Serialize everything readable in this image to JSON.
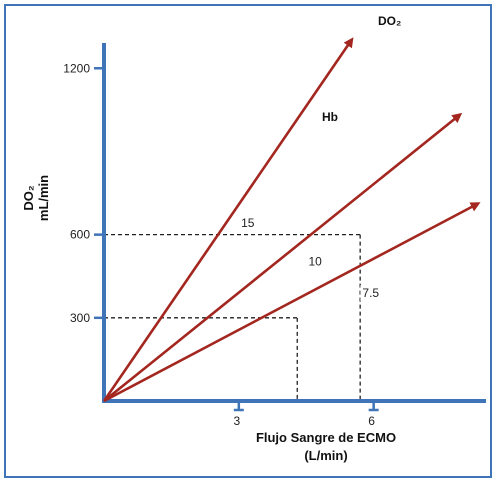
{
  "chart_data": {
    "type": "line",
    "title": "DO₂",
    "legend_title": "Hb",
    "xlabel_line1": "Flujo Sangre de ECMO",
    "xlabel_line2": "(L/min)",
    "ylabel_line1": "DO₂",
    "ylabel_line2": "mL/min",
    "xlim": [
      0,
      8.5
    ],
    "ylim": [
      0,
      1320
    ],
    "x_ticks": [
      3,
      6
    ],
    "x_tick_labels": [
      "3",
      "6"
    ],
    "y_ticks": [
      300,
      600,
      1200
    ],
    "y_tick_labels": [
      "300",
      "600",
      "1200"
    ],
    "series": [
      {
        "name": "15",
        "x": [
          0,
          5.5
        ],
        "y": [
          0,
          1300
        ],
        "label_at": [
          3.05,
          627
        ]
      },
      {
        "name": "10",
        "x": [
          0,
          7.9
        ],
        "y": [
          0,
          1030
        ],
        "label_at": [
          4.55,
          488
        ]
      },
      {
        "name": "7.5",
        "x": [
          0,
          8.3
        ],
        "y": [
          0,
          710
        ],
        "label_at": [
          5.75,
          375
        ]
      }
    ],
    "reference_lines": [
      {
        "x": 4.3,
        "y": 300
      },
      {
        "x": 5.7,
        "y": 600
      }
    ],
    "colors": {
      "series": "#a3261f",
      "axis": "#3f74b8",
      "frame": "#3f74b8"
    }
  }
}
